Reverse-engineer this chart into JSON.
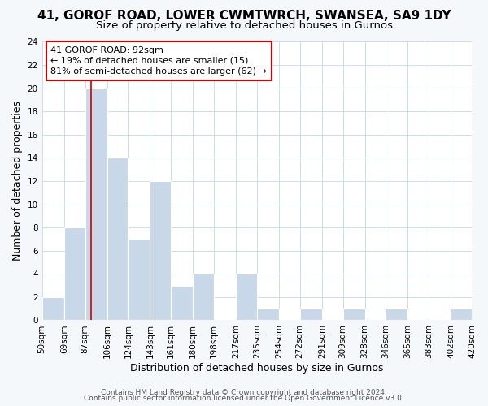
{
  "title": "41, GOROF ROAD, LOWER CWMTWRCH, SWANSEA, SA9 1DY",
  "subtitle": "Size of property relative to detached houses in Gurnos",
  "xlabel": "Distribution of detached houses by size in Gurnos",
  "ylabel": "Number of detached properties",
  "bar_color": "#c8d8e8",
  "marker_color": "#cc0000",
  "marker_value": 92,
  "bins": [
    50,
    69,
    87,
    106,
    124,
    143,
    161,
    180,
    198,
    217,
    235,
    254,
    272,
    291,
    309,
    328,
    346,
    365,
    383,
    402,
    420
  ],
  "bin_labels": [
    "50sqm",
    "69sqm",
    "87sqm",
    "106sqm",
    "124sqm",
    "143sqm",
    "161sqm",
    "180sqm",
    "198sqm",
    "217sqm",
    "235sqm",
    "254sqm",
    "272sqm",
    "291sqm",
    "309sqm",
    "328sqm",
    "346sqm",
    "365sqm",
    "383sqm",
    "402sqm",
    "420sqm"
  ],
  "counts": [
    2,
    8,
    20,
    14,
    7,
    12,
    3,
    4,
    0,
    4,
    1,
    0,
    1,
    0,
    1,
    0,
    1,
    0,
    0,
    1
  ],
  "ylim": [
    0,
    24
  ],
  "yticks": [
    0,
    2,
    4,
    6,
    8,
    10,
    12,
    14,
    16,
    18,
    20,
    22,
    24
  ],
  "annotation_title": "41 GOROF ROAD: 92sqm",
  "annotation_line1": "← 19% of detached houses are smaller (15)",
  "annotation_line2": "81% of semi-detached houses are larger (62) →",
  "footer1": "Contains HM Land Registry data © Crown copyright and database right 2024.",
  "footer2": "Contains public sector information licensed under the Open Government Licence v3.0.",
  "background_color": "#f5f8fa",
  "plot_bg_color": "#ffffff",
  "title_fontsize": 11,
  "subtitle_fontsize": 9.5,
  "axis_label_fontsize": 9,
  "tick_fontsize": 7.5,
  "annotation_fontsize": 8,
  "footer_fontsize": 6.5
}
